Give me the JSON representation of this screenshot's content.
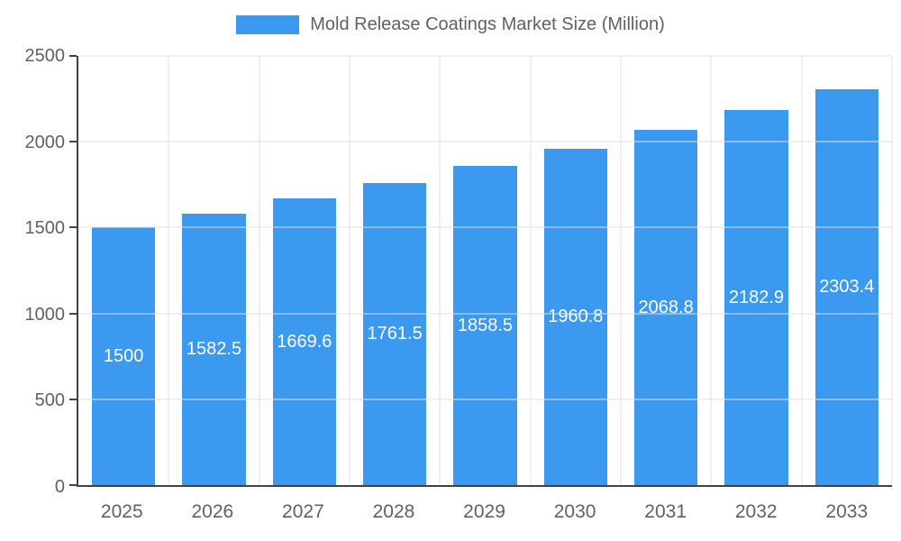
{
  "chart_data": {
    "type": "bar",
    "title": "Mold Release Coatings Market Size (Million)",
    "categories": [
      "2025",
      "2026",
      "2027",
      "2028",
      "2029",
      "2030",
      "2031",
      "2032",
      "2033"
    ],
    "values": [
      1500,
      1582.5,
      1669.6,
      1761.5,
      1858.5,
      1960.8,
      2068.8,
      2182.9,
      2303.4
    ],
    "xlabel": "",
    "ylabel": "",
    "ylim": [
      0,
      2500
    ],
    "yticks": [
      0,
      500,
      1000,
      1500,
      2000,
      2500
    ],
    "grid": true,
    "legend_position": "top",
    "colors": {
      "bar": "#3B99F0",
      "bar_value_label": "#FFFFFF",
      "axis_line": "#424242",
      "gridline": "#E0E0E0",
      "tick_label": "#616161",
      "legend_text": "#616161",
      "background": "#FFFFFF"
    }
  }
}
